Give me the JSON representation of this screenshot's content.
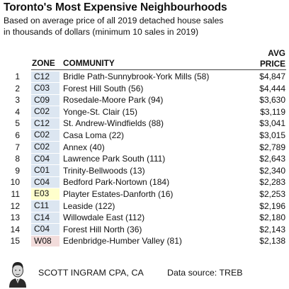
{
  "title": "Toronto's Most Expensive Neighbourhoods",
  "subtitle_line1": "Based on average price of all 2019 detached house sales",
  "subtitle_line2": "in thousands of dollars (minimum 10 sales in 2019)",
  "headers": {
    "zone": "ZONE",
    "community": "COMMUNITY",
    "price_line1": "AVG",
    "price_line2": "PRICE"
  },
  "zone_colors": {
    "C": "#dce6f1",
    "E": "#ffffcc",
    "W": "#f2dcdb"
  },
  "rows": [
    {
      "rank": "1",
      "zone": "C12",
      "community": "Bridle Path-Sunnybrook-York Mills (58)",
      "price": "$4,847"
    },
    {
      "rank": "2",
      "zone": "C03",
      "community": "Forest Hill South (56)",
      "price": "$4,444"
    },
    {
      "rank": "3",
      "zone": "C09",
      "community": "Rosedale-Moore Park (94)",
      "price": "$3,630"
    },
    {
      "rank": "4",
      "zone": "C02",
      "community": "Yonge-St. Clair (15)",
      "price": "$3,119"
    },
    {
      "rank": "5",
      "zone": "C12",
      "community": "St. Andrew-Windfields (88)",
      "price": "$3,041"
    },
    {
      "rank": "6",
      "zone": "C02",
      "community": "Casa Loma (22)",
      "price": "$3,015"
    },
    {
      "rank": "7",
      "zone": "C02",
      "community": "Annex (40)",
      "price": "$2,789"
    },
    {
      "rank": "8",
      "zone": "C04",
      "community": "Lawrence Park South (111)",
      "price": "$2,643"
    },
    {
      "rank": "9",
      "zone": "C01",
      "community": "Trinity-Bellwoods (13)",
      "price": "$2,340"
    },
    {
      "rank": "10",
      "zone": "C04",
      "community": "Bedford Park-Nortown (184)",
      "price": "$2,283"
    },
    {
      "rank": "11",
      "zone": "E03",
      "community": "Playter Estates-Danforth (16)",
      "price": "$2,253"
    },
    {
      "rank": "12",
      "zone": "C11",
      "community": "Leaside (122)",
      "price": "$2,196"
    },
    {
      "rank": "13",
      "zone": "C14",
      "community": "Willowdale East (112)",
      "price": "$2,180"
    },
    {
      "rank": "14",
      "zone": "C04",
      "community": "Forest Hill North (36)",
      "price": "$2,143"
    },
    {
      "rank": "15",
      "zone": "W08",
      "community": "Edenbridge-Humber Valley (81)",
      "price": "$2,138"
    }
  ],
  "footer": {
    "author": "SCOTT INGRAM CPA, CA",
    "source": "Data source: TREB",
    "portrait_icon": "author-portrait-icon"
  }
}
